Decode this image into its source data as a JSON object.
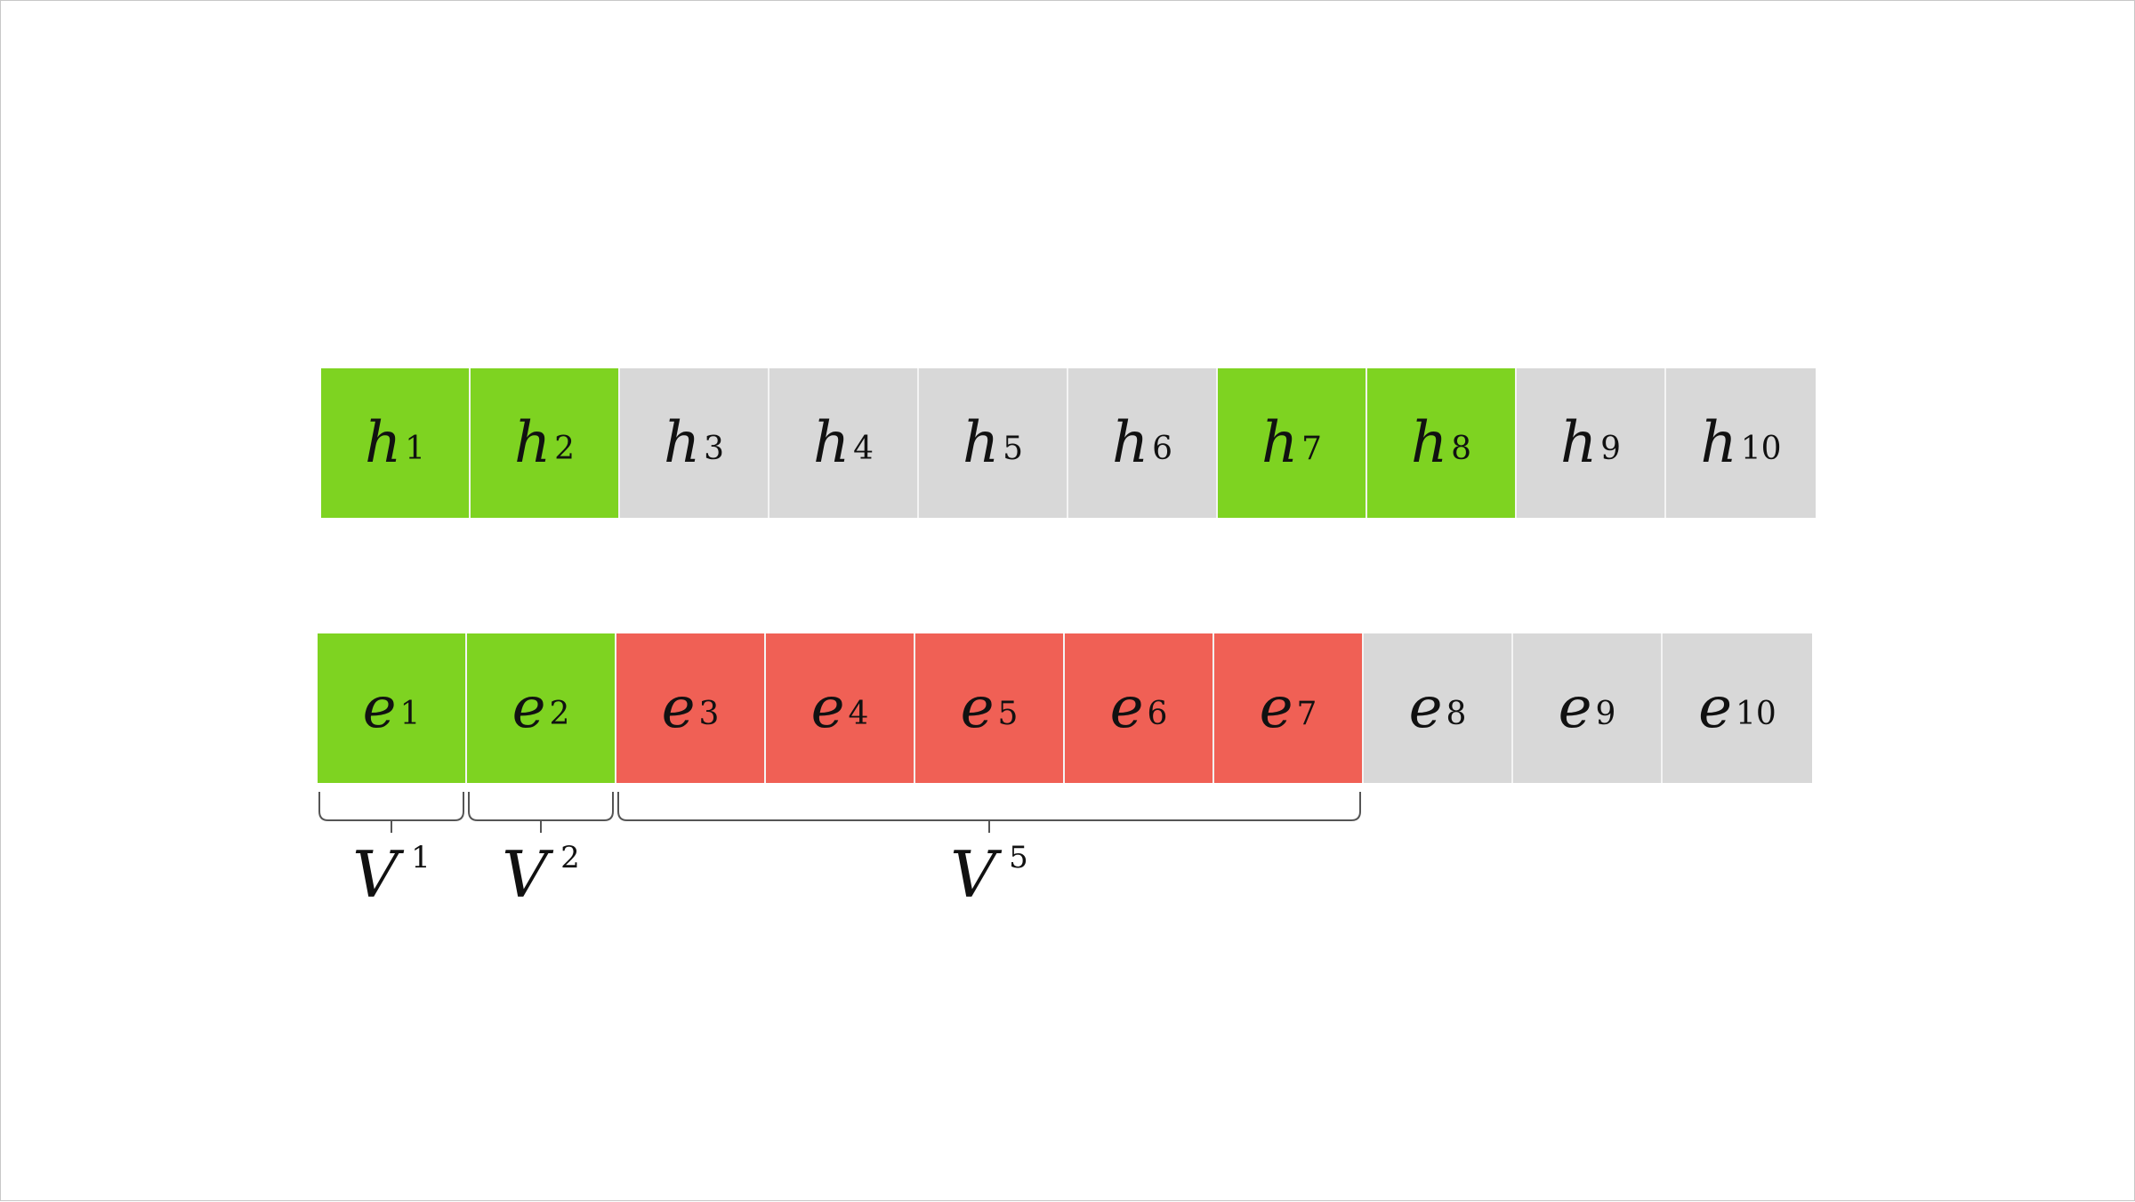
{
  "colors": {
    "green": "#7ed321",
    "gray": "#d8d8d8",
    "red": "#f06055",
    "brace": "#555555"
  },
  "h_row": [
    {
      "base": "h",
      "sub": "1",
      "state": "green"
    },
    {
      "base": "h",
      "sub": "2",
      "state": "green"
    },
    {
      "base": "h",
      "sub": "3",
      "state": "gray"
    },
    {
      "base": "h",
      "sub": "4",
      "state": "gray"
    },
    {
      "base": "h",
      "sub": "5",
      "state": "gray"
    },
    {
      "base": "h",
      "sub": "6",
      "state": "gray"
    },
    {
      "base": "h",
      "sub": "7",
      "state": "green"
    },
    {
      "base": "h",
      "sub": "8",
      "state": "green"
    },
    {
      "base": "h",
      "sub": "9",
      "state": "gray"
    },
    {
      "base": "h",
      "sub": "10",
      "state": "gray"
    }
  ],
  "e_row": [
    {
      "base": "e",
      "sub": "1",
      "state": "green"
    },
    {
      "base": "e",
      "sub": "2",
      "state": "green"
    },
    {
      "base": "e",
      "sub": "3",
      "state": "red"
    },
    {
      "base": "e",
      "sub": "4",
      "state": "red"
    },
    {
      "base": "e",
      "sub": "5",
      "state": "red"
    },
    {
      "base": "e",
      "sub": "6",
      "state": "red"
    },
    {
      "base": "e",
      "sub": "7",
      "state": "red"
    },
    {
      "base": "e",
      "sub": "8",
      "state": "gray"
    },
    {
      "base": "e",
      "sub": "9",
      "state": "gray"
    },
    {
      "base": "e",
      "sub": "10",
      "state": "gray"
    }
  ],
  "groups": [
    {
      "base": "V",
      "sup": "1",
      "start_cell": 1,
      "end_cell": 1
    },
    {
      "base": "V",
      "sup": "2",
      "start_cell": 2,
      "end_cell": 2
    },
    {
      "base": "V",
      "sup": "5",
      "start_cell": 3,
      "end_cell": 7
    }
  ]
}
